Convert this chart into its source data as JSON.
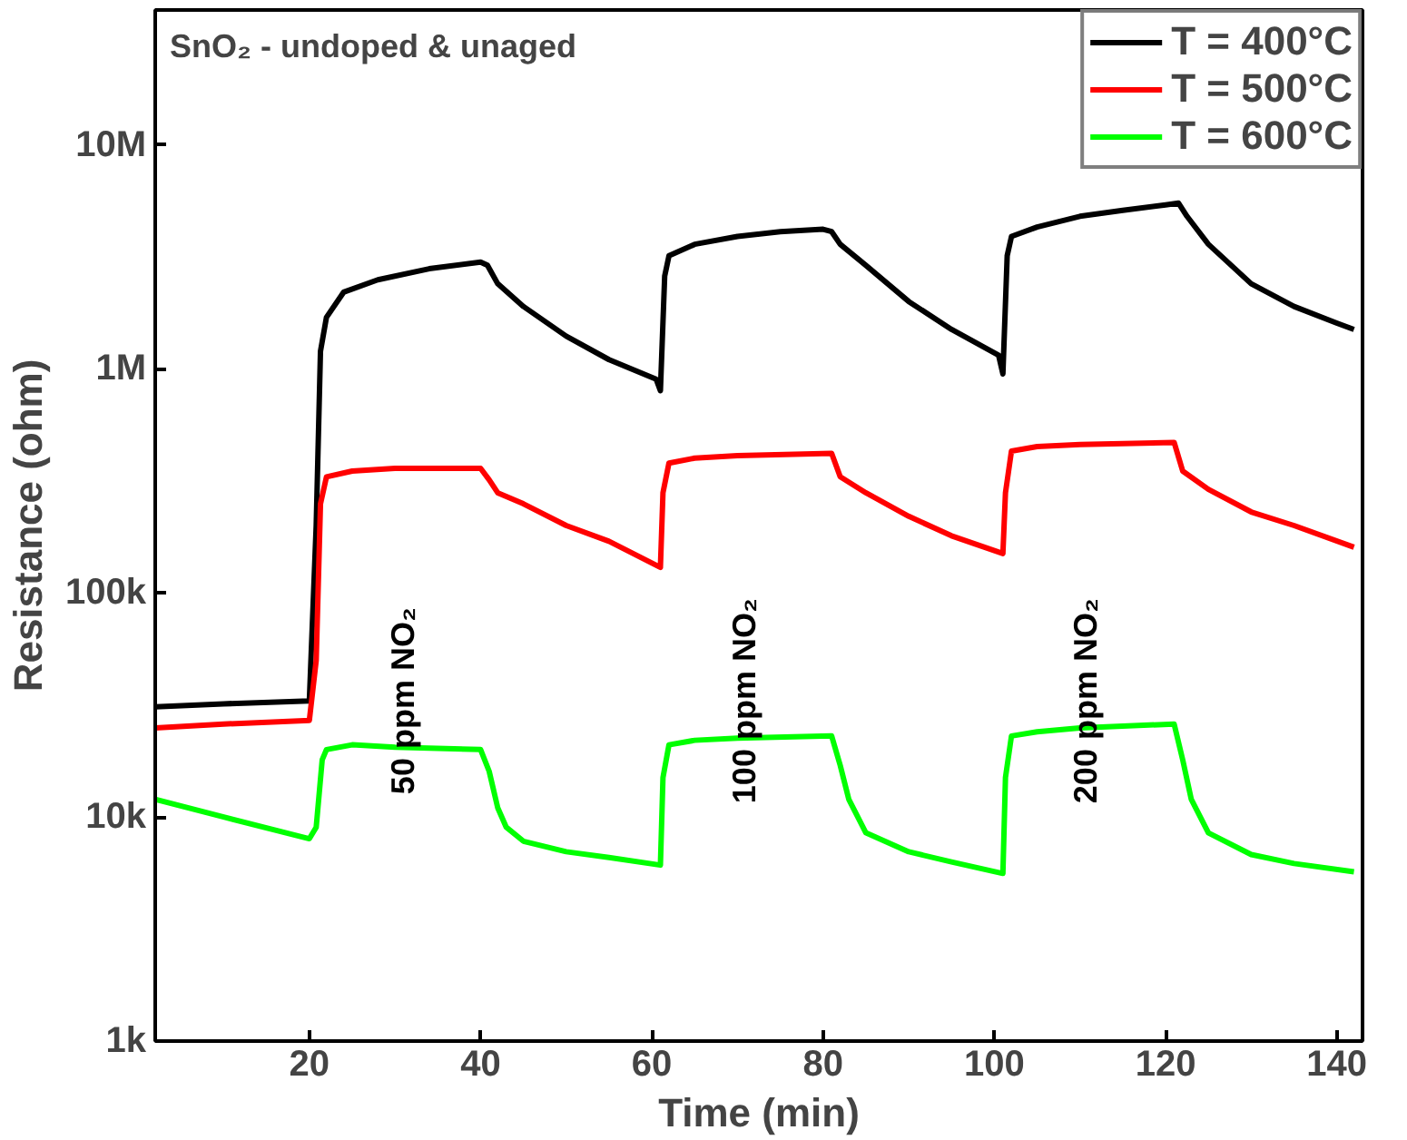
{
  "chart_data": {
    "type": "line",
    "title": "SnO₂ - undoped & unaged",
    "xlabel": "Time (min)",
    "ylabel": "Resistance (ohm)",
    "xlim": [
      2,
      143
    ],
    "xticks": [
      20,
      40,
      60,
      80,
      100,
      120,
      140
    ],
    "ylim": [
      1000,
      40000000
    ],
    "yticks": [
      {
        "value": 1000,
        "label": "1k"
      },
      {
        "value": 10000,
        "label": "10k"
      },
      {
        "value": 100000,
        "label": "100k"
      },
      {
        "value": 1000000,
        "label": "1M"
      },
      {
        "value": 10000000,
        "label": "10M"
      }
    ],
    "log": true,
    "grid": false,
    "legend": "top right",
    "line_style": "solid",
    "marker": "none",
    "series": [
      {
        "name": "T = 400°C",
        "color": "#000000",
        "x": [
          2,
          10,
          20,
          20.8,
          21.3,
          22,
          24,
          28,
          34,
          40,
          40.8,
          42,
          45,
          50,
          55,
          60.5,
          61,
          61.5,
          62,
          65,
          70,
          75,
          80,
          81,
          82,
          85,
          90,
          95,
          100.5,
          101,
          101.5,
          102,
          105,
          110,
          115,
          120,
          121.5,
          122.5,
          125,
          130,
          135,
          140,
          142
        ],
        "values": [
          31000,
          32000,
          33000,
          200000,
          1200000,
          1700000,
          2200000,
          2500000,
          2800000,
          3000000,
          2900000,
          2400000,
          1900000,
          1400000,
          1100000,
          900000,
          800000,
          2600000,
          3200000,
          3600000,
          3900000,
          4100000,
          4200000,
          4100000,
          3600000,
          2900000,
          2000000,
          1500000,
          1150000,
          950000,
          3200000,
          3900000,
          4300000,
          4800000,
          5100000,
          5400000,
          5500000,
          4800000,
          3600000,
          2400000,
          1900000,
          1600000,
          1500000
        ]
      },
      {
        "name": "T = 500°C",
        "color": "#ff0000",
        "x": [
          2,
          10,
          20,
          20.8,
          21.3,
          22,
          25,
          30,
          40,
          41,
          42,
          45,
          50,
          55,
          61,
          61.3,
          62,
          65,
          70,
          81,
          82,
          85,
          90,
          95,
          101,
          101.3,
          102,
          105,
          110,
          121,
          122,
          125,
          130,
          135,
          142
        ],
        "values": [
          25000,
          26000,
          27000,
          50000,
          250000,
          330000,
          350000,
          360000,
          360000,
          320000,
          280000,
          250000,
          200000,
          170000,
          130000,
          280000,
          380000,
          400000,
          410000,
          420000,
          330000,
          280000,
          220000,
          180000,
          150000,
          280000,
          430000,
          450000,
          460000,
          470000,
          350000,
          290000,
          230000,
          200000,
          160000
        ]
      },
      {
        "name": "T = 600°C",
        "color": "#00ff00",
        "x": [
          2,
          10,
          20,
          20.8,
          21.5,
          22,
          25,
          30,
          40,
          41,
          42,
          43,
          45,
          50,
          55,
          61,
          61.3,
          62,
          65,
          70,
          81,
          82,
          83,
          85,
          90,
          95,
          101,
          101.3,
          102,
          105,
          110,
          121,
          122,
          123,
          125,
          130,
          135,
          142
        ],
        "values": [
          12000,
          10000,
          8000,
          9000,
          18000,
          20000,
          21000,
          20500,
          20000,
          16000,
          11000,
          9000,
          7800,
          7000,
          6600,
          6100,
          15000,
          21000,
          22000,
          22500,
          23000,
          17000,
          12000,
          8500,
          7000,
          6300,
          5600,
          15000,
          23000,
          24000,
          25000,
          26000,
          18000,
          12000,
          8500,
          6800,
          6200,
          5700
        ]
      }
    ],
    "annotations": [
      "50 ppm NO₂",
      "100 ppm NO₂",
      "200 ppm NO₂"
    ]
  }
}
